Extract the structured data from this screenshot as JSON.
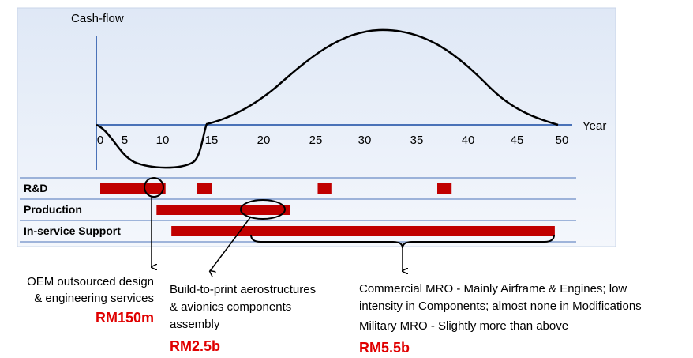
{
  "diagram": {
    "y_axis_label": "Cash-flow",
    "x_axis_label": "Year",
    "xticks": [
      0,
      5,
      10,
      15,
      20,
      25,
      30,
      35,
      40,
      45,
      50
    ],
    "rows": [
      {
        "label": "R&D",
        "bars": [
          [
            0,
            10.3
          ],
          [
            13.5,
            15
          ],
          [
            25.2,
            26.6
          ],
          [
            37,
            38.4
          ]
        ]
      },
      {
        "label": "Production",
        "bars": [
          [
            9.2,
            22.5
          ]
        ]
      },
      {
        "label": "In-service Support",
        "bars": [
          [
            10.9,
            49.2
          ]
        ]
      }
    ],
    "annotations": [
      {
        "lines": [
          "OEM outsourced design",
          "& engineering services"
        ],
        "value": "RM150m"
      },
      {
        "lines": [
          "Build-to-print aerostructures",
          "& avionics components",
          "assembly"
        ],
        "value": "RM2.5b"
      },
      {
        "lines": [
          "Commercial MRO -  Mainly Airframe & Engines; low",
          "intensity in Components; almost none in Modifications",
          "Military MRO - Slightly more than above"
        ],
        "value": "RM5.5b"
      }
    ]
  }
}
